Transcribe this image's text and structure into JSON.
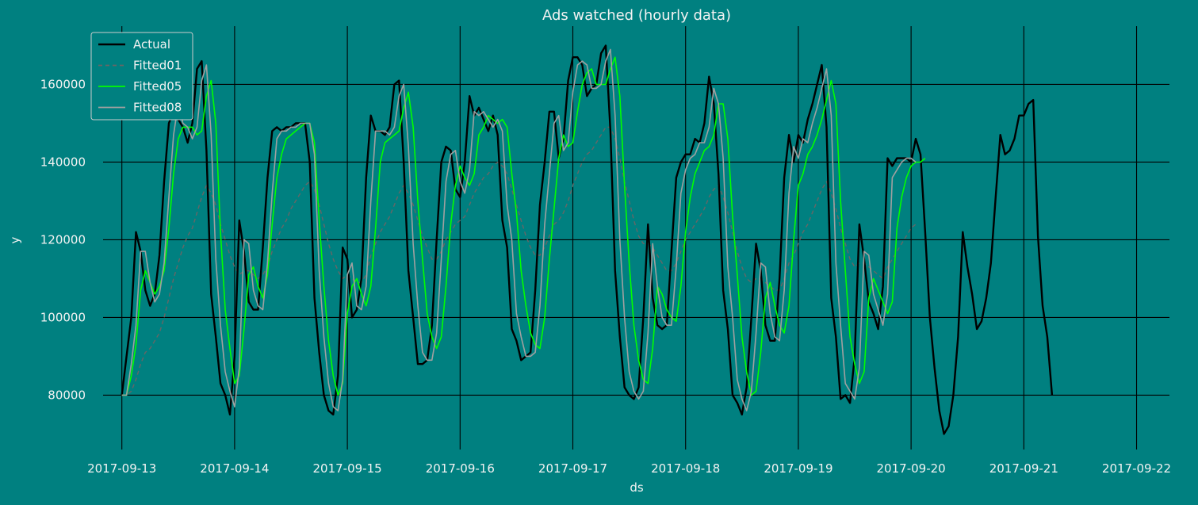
{
  "chart_data": {
    "type": "line",
    "title": "Ads watched (hourly data)",
    "xlabel": "ds",
    "ylabel": "y",
    "grid": true,
    "legend_position": "top-left",
    "xlim": [
      "2017-09-12T20:00",
      "2017-09-22T07:00"
    ],
    "ylim": [
      66000,
      175000
    ],
    "x_ticks": [
      "2017-09-13",
      "2017-09-14",
      "2017-09-15",
      "2017-09-16",
      "2017-09-17",
      "2017-09-18",
      "2017-09-19",
      "2017-09-20",
      "2017-09-21",
      "2017-09-22"
    ],
    "y_ticks": [
      80000,
      100000,
      120000,
      140000,
      160000
    ],
    "y_tick_labels": [
      "80000",
      "100000",
      "120000",
      "140000",
      "160000"
    ],
    "series": [
      {
        "name": "Actual",
        "color": "#000000",
        "style": "solid",
        "x_start": "2017-09-13T00:00",
        "step_hours": 1,
        "values": [
          80000,
          90000,
          100000,
          122000,
          117000,
          107000,
          103000,
          106000,
          116000,
          135000,
          150000,
          153000,
          151000,
          149000,
          145000,
          150000,
          164000,
          166000,
          143000,
          106000,
          95000,
          83000,
          80000,
          75000,
          90000,
          125000,
          117000,
          104000,
          102000,
          102000,
          118000,
          136000,
          148000,
          149000,
          148000,
          149000,
          149000,
          150000,
          150000,
          150000,
          140000,
          105000,
          91000,
          80000,
          76000,
          75000,
          85000,
          118000,
          115000,
          100000,
          102000,
          110000,
          136000,
          152000,
          148000,
          148000,
          147000,
          149000,
          160000,
          161000,
          140000,
          112000,
          100000,
          88000,
          88000,
          89000,
          98000,
          120000,
          140000,
          144000,
          143000,
          133000,
          131000,
          140000,
          157000,
          152000,
          154000,
          151000,
          148000,
          152000,
          147000,
          125000,
          118000,
          97000,
          94000,
          89000,
          90000,
          91000,
          107000,
          129000,
          140000,
          153000,
          153000,
          141000,
          146000,
          161000,
          167000,
          167000,
          165000,
          157000,
          159000,
          160000,
          168000,
          170000,
          148000,
          112000,
          95000,
          82000,
          80000,
          79000,
          82000,
          100000,
          124000,
          105000,
          98000,
          97000,
          98000,
          117000,
          136000,
          140000,
          142000,
          142000,
          146000,
          145000,
          150000,
          162000,
          155000,
          137000,
          107000,
          97000,
          80000,
          78000,
          75000,
          82000,
          100000,
          119000,
          112000,
          98000,
          94000,
          94000,
          110000,
          136000,
          147000,
          140000,
          147000,
          145000,
          151000,
          155000,
          160000,
          165000,
          149000,
          105000,
          95000,
          79000,
          80000,
          78000,
          90000,
          124000,
          115000,
          104000,
          101000,
          97000,
          108000,
          141000,
          139000,
          141000,
          141000,
          141000,
          140000,
          146000,
          142000,
          122000,
          100000,
          87000,
          76000,
          70000,
          72000,
          80000,
          95000,
          122000,
          113000,
          106000,
          97000,
          99000,
          105000,
          114000,
          131000,
          147000,
          142000,
          143000,
          146000,
          152000,
          152000,
          155000,
          156000,
          121000,
          103000,
          95000,
          80000
        ]
      },
      {
        "name": "Fitted01",
        "color": "#666666",
        "style": "dashed",
        "x_start": "2017-09-13T00:00",
        "step_hours": 1,
        "values": [
          80000,
          80000,
          81000,
          84000,
          88000,
          91000,
          92000,
          94000,
          96000,
          100000,
          105000,
          110000,
          114000,
          118000,
          121000,
          123000,
          127000,
          131000,
          134000,
          132000,
          129000,
          124000,
          120000,
          116000,
          113000,
          111000,
          112000,
          112000,
          111000,
          110000,
          111000,
          113000,
          117000,
          120000,
          123000,
          125000,
          128000,
          130000,
          132000,
          134000,
          135000,
          133000,
          129000,
          124000,
          119000,
          115000,
          112000,
          110000,
          111000,
          110000,
          109000,
          109000,
          111000,
          116000,
          119000,
          122000,
          124000,
          126000,
          129000,
          132000,
          134000,
          132000,
          129000,
          125000,
          121000,
          118000,
          115000,
          115000,
          117000,
          120000,
          122000,
          124000,
          125000,
          126000,
          129000,
          132000,
          134000,
          136000,
          137000,
          139000,
          140000,
          139000,
          137000,
          133000,
          129000,
          125000,
          121000,
          118000,
          116000,
          116000,
          118000,
          121000,
          124000,
          125000,
          127000,
          130000,
          134000,
          137000,
          140000,
          142000,
          143000,
          145000,
          147000,
          149000,
          149000,
          146000,
          141000,
          135000,
          130000,
          125000,
          121000,
          119000,
          119000,
          118000,
          116000,
          114000,
          112000,
          112000,
          114000,
          117000,
          120000,
          122000,
          124000,
          126000,
          128000,
          131000,
          133000,
          134000,
          131000,
          127000,
          122000,
          117000,
          113000,
          110000,
          109000,
          110000,
          110000,
          109000,
          108000,
          107000,
          107000,
          110000,
          114000,
          116000,
          119000,
          122000,
          124000,
          127000,
          130000,
          133000,
          135000,
          132000,
          128000,
          123000,
          119000,
          115000,
          113000,
          114000,
          114000,
          113000,
          112000,
          111000,
          110000,
          113000,
          115000,
          117000,
          119000,
          121000,
          123000,
          124000
        ]
      },
      {
        "name": "Fitted05",
        "color": "#00ff00",
        "style": "solid",
        "x_start": "2017-09-13T00:00",
        "step_hours": 1,
        "values": [
          80000,
          80000,
          85000,
          93000,
          107000,
          112000,
          109000,
          106000,
          108000,
          112000,
          123000,
          137000,
          146000,
          149000,
          149000,
          149000,
          147000,
          148000,
          157000,
          161000,
          150000,
          122000,
          102000,
          92000,
          83000,
          85000,
          97000,
          111000,
          113000,
          108000,
          105000,
          111000,
          124000,
          136000,
          142000,
          146000,
          147000,
          148000,
          149000,
          150000,
          150000,
          145000,
          125000,
          108000,
          94000,
          85000,
          80000,
          83000,
          101000,
          108000,
          110000,
          106000,
          103000,
          108000,
          123000,
          140000,
          145000,
          146000,
          147000,
          148000,
          154000,
          158000,
          149000,
          130000,
          115000,
          101000,
          95000,
          92000,
          95000,
          108000,
          124000,
          134000,
          139000,
          136000,
          134000,
          137000,
          147000,
          149000,
          152000,
          151000,
          150000,
          151000,
          149000,
          137000,
          127000,
          112000,
          103000,
          96000,
          93000,
          92000,
          100000,
          115000,
          128000,
          141000,
          147000,
          144000,
          145000,
          153000,
          160000,
          163000,
          164000,
          160000,
          160000,
          160000,
          164000,
          167000,
          157000,
          134000,
          114000,
          98000,
          89000,
          84000,
          83000,
          92000,
          108000,
          106000,
          102000,
          100000,
          99000,
          108000,
          122000,
          131000,
          137000,
          140000,
          143000,
          144000,
          147000,
          155000,
          155000,
          146000,
          126000,
          111000,
          95000,
          86000,
          80000,
          81000,
          91000,
          105000,
          109000,
          103000,
          98000,
          96000,
          103000,
          120000,
          134000,
          137000,
          142000,
          144000,
          147000,
          151000,
          156000,
          161000,
          155000,
          130000,
          112000,
          95000,
          88000,
          83000,
          86000,
          105000,
          110000,
          107000,
          104000,
          101000,
          104000,
          123000,
          131000,
          136000,
          139000,
          140000,
          140000,
          141000
        ]
      },
      {
        "name": "Fitted08",
        "color": "#a0a0a0",
        "style": "solid",
        "x_start": "2017-09-13T00:00",
        "step_hours": 1,
        "values": [
          80000,
          80000,
          88000,
          98000,
          117000,
          117000,
          109000,
          104000,
          106000,
          114000,
          131000,
          147000,
          155000,
          150000,
          149000,
          146000,
          149000,
          161000,
          165000,
          147000,
          115000,
          98000,
          86000,
          81000,
          77000,
          87000,
          120000,
          119000,
          107000,
          103000,
          102000,
          114000,
          132000,
          146000,
          148000,
          148000,
          149000,
          149000,
          150000,
          150000,
          150000,
          142000,
          112000,
          95000,
          83000,
          77000,
          76000,
          84000,
          111000,
          114000,
          103000,
          102000,
          108000,
          130000,
          148000,
          148000,
          148000,
          147000,
          149000,
          157000,
          160000,
          144000,
          119000,
          103000,
          91000,
          89000,
          89000,
          96000,
          115000,
          135000,
          142000,
          143000,
          135000,
          132000,
          138000,
          153000,
          152000,
          153000,
          151000,
          149000,
          151000,
          148000,
          129000,
          120000,
          101000,
          95000,
          90000,
          90000,
          91000,
          103000,
          124000,
          137000,
          150000,
          152000,
          143000,
          145000,
          158000,
          165000,
          166000,
          165000,
          159000,
          159000,
          160000,
          166000,
          169000,
          152000,
          120000,
          100000,
          86000,
          81000,
          79000,
          81000,
          96000,
          119000,
          108000,
          100000,
          98000,
          98000,
          113000,
          132000,
          138000,
          141000,
          142000,
          145000,
          145000,
          149000,
          159000,
          155000,
          141000,
          113000,
          100000,
          84000,
          79000,
          76000,
          81000,
          96000,
          114000,
          113000,
          101000,
          95000,
          94000,
          107000,
          132000,
          144000,
          141000,
          146000,
          145000,
          150000,
          154000,
          159000,
          164000,
          152000,
          114000,
          98000,
          83000,
          81000,
          79000,
          87000,
          117000,
          116000,
          106000,
          102000,
          98000,
          106000,
          136000,
          138000,
          140000,
          141000,
          141000,
          140000
        ]
      }
    ]
  }
}
